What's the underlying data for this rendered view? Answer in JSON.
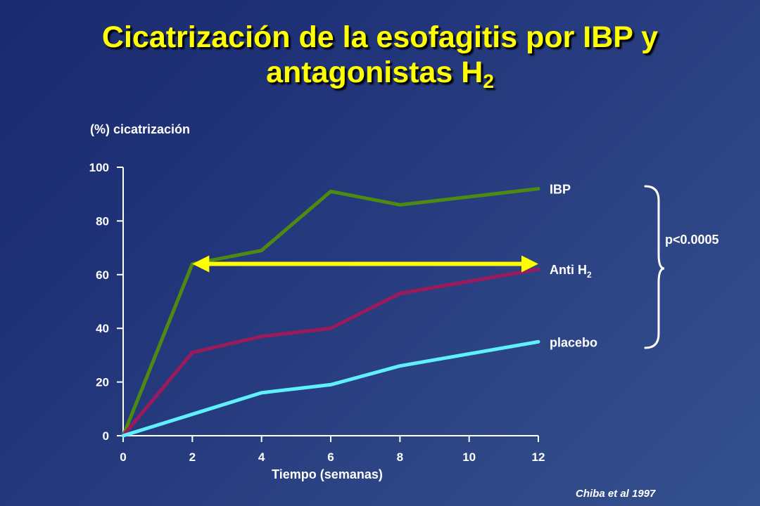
{
  "slide": {
    "title_line1": "Cicatrización de la esofagitis por IBP y",
    "title_line2": "antagonistas H",
    "title_subscript": "2",
    "source": "Chiba et al 1997"
  },
  "chart_data": {
    "type": "line",
    "ylabel": "(%) cicatrización",
    "xlabel": "Tiempo (semanas)",
    "xlim": [
      0,
      12
    ],
    "ylim": [
      0,
      100
    ],
    "xticks": [
      0,
      2,
      4,
      6,
      8,
      10,
      12
    ],
    "yticks": [
      0,
      20,
      40,
      60,
      80,
      100
    ],
    "grid": false,
    "series": [
      {
        "name": "IBP",
        "name_subscript": "",
        "color": "#4e8a12",
        "points": [
          [
            0,
            0
          ],
          [
            2,
            64
          ],
          [
            4,
            69
          ],
          [
            6,
            91
          ],
          [
            8,
            86
          ],
          [
            12,
            92
          ]
        ]
      },
      {
        "name": "Anti H",
        "name_subscript": "2",
        "color": "#9c1a5c",
        "points": [
          [
            0,
            0
          ],
          [
            2,
            31
          ],
          [
            4,
            37
          ],
          [
            6,
            40
          ],
          [
            8,
            53
          ],
          [
            12,
            62
          ]
        ]
      },
      {
        "name": "placebo",
        "name_subscript": "",
        "color": "#5ff0ff",
        "points": [
          [
            0,
            0
          ],
          [
            2,
            8
          ],
          [
            4,
            16
          ],
          [
            6,
            19
          ],
          [
            8,
            26
          ],
          [
            12,
            35
          ]
        ]
      }
    ],
    "annotations": {
      "arrow": {
        "from": [
          2,
          64
        ],
        "to": [
          12,
          64
        ],
        "color": "#ffff00"
      },
      "significance_label": "p<0.0005"
    }
  }
}
